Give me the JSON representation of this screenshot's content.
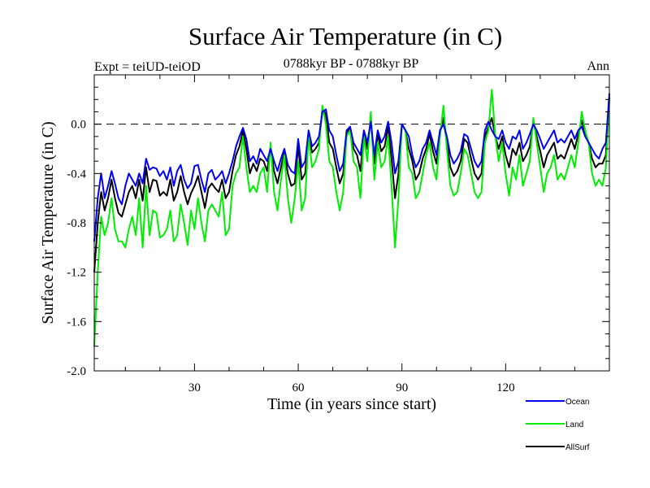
{
  "chart_data": {
    "type": "line",
    "title": "Surface Air Temperature (in C)",
    "subtitle_left": "Expt = teiUD-teiOD",
    "subtitle_center": "0788kyr BP - 0788kyr BP",
    "subtitle_right": "Ann",
    "xlabel": "Time (in years since start)",
    "ylabel": "Surface Air Temperature (in C)",
    "xlim": [
      1,
      150
    ],
    "ylim": [
      -2.0,
      0.4
    ],
    "xticks": [
      30,
      60,
      90,
      120
    ],
    "xtick_labels": [
      "30",
      "60",
      "90",
      "120"
    ],
    "yticks": [
      -2.0,
      -1.6,
      -1.2,
      -0.8,
      -0.4,
      0.0
    ],
    "ytick_labels": [
      "-2.0",
      "-1.6",
      "-1.2",
      "-0.8",
      "-0.4",
      "0.0"
    ],
    "reference_line": 0.0,
    "legend_position": "bottom-right",
    "series": [
      {
        "name": "Ocean",
        "color": "#0000ee",
        "values": [
          -0.95,
          -0.6,
          -0.4,
          -0.6,
          -0.5,
          -0.38,
          -0.48,
          -0.6,
          -0.65,
          -0.5,
          -0.4,
          -0.45,
          -0.5,
          -0.4,
          -0.48,
          -0.28,
          -0.37,
          -0.35,
          -0.36,
          -0.42,
          -0.38,
          -0.45,
          -0.35,
          -0.5,
          -0.38,
          -0.33,
          -0.45,
          -0.52,
          -0.48,
          -0.34,
          -0.33,
          -0.45,
          -0.55,
          -0.4,
          -0.37,
          -0.45,
          -0.42,
          -0.38,
          -0.48,
          -0.4,
          -0.3,
          -0.18,
          -0.1,
          -0.03,
          -0.12,
          -0.3,
          -0.26,
          -0.32,
          -0.2,
          -0.25,
          -0.3,
          -0.2,
          -0.3,
          -0.38,
          -0.28,
          -0.2,
          -0.33,
          -0.38,
          -0.4,
          -0.12,
          -0.35,
          -0.3,
          -0.05,
          -0.18,
          -0.15,
          -0.1,
          0.1,
          0.12,
          -0.05,
          -0.1,
          -0.25,
          -0.38,
          -0.32,
          -0.05,
          -0.02,
          -0.15,
          -0.2,
          -0.25,
          -0.05,
          -0.15,
          0.02,
          -0.25,
          -0.05,
          -0.15,
          -0.1,
          0.02,
          -0.15,
          -0.4,
          -0.3,
          0.0,
          -0.05,
          -0.1,
          -0.25,
          -0.35,
          -0.3,
          -0.2,
          -0.15,
          -0.05,
          -0.15,
          -0.25,
          -0.05,
          0.0,
          -0.1,
          -0.25,
          -0.32,
          -0.28,
          -0.22,
          -0.08,
          -0.1,
          -0.2,
          -0.3,
          -0.35,
          -0.3,
          -0.05,
          0.02,
          -0.05,
          -0.1,
          -0.12,
          -0.05,
          -0.15,
          -0.2,
          -0.1,
          -0.12,
          -0.05,
          -0.2,
          -0.15,
          -0.08,
          0.0,
          -0.05,
          -0.12,
          -0.2,
          -0.15,
          -0.1,
          -0.05,
          -0.15,
          -0.12,
          -0.15,
          -0.1,
          -0.05,
          -0.12,
          -0.05,
          -0.02,
          -0.1,
          -0.15,
          -0.2,
          -0.25,
          -0.28,
          -0.2,
          -0.15,
          0.25
        ]
      },
      {
        "name": "Land",
        "color": "#00ee00",
        "values": [
          -1.8,
          -1.2,
          -0.75,
          -0.9,
          -0.8,
          -0.6,
          -0.85,
          -0.95,
          -0.95,
          -1.0,
          -0.85,
          -0.75,
          -0.9,
          -0.6,
          -1.0,
          -0.5,
          -0.9,
          -0.7,
          -0.72,
          -0.92,
          -0.9,
          -0.85,
          -0.7,
          -0.95,
          -0.9,
          -0.65,
          -0.8,
          -0.98,
          -0.7,
          -0.85,
          -0.6,
          -0.8,
          -0.95,
          -0.7,
          -0.65,
          -0.7,
          -0.75,
          -0.55,
          -0.9,
          -0.85,
          -0.5,
          -0.4,
          -0.35,
          -0.1,
          -0.35,
          -0.55,
          -0.5,
          -0.55,
          -0.4,
          -0.35,
          -0.55,
          -0.15,
          -0.55,
          -0.7,
          -0.45,
          -0.25,
          -0.6,
          -0.8,
          -0.6,
          -0.3,
          -0.7,
          -0.6,
          -0.1,
          -0.35,
          -0.3,
          -0.2,
          0.15,
          0.0,
          -0.3,
          -0.35,
          -0.55,
          -0.7,
          -0.55,
          -0.1,
          -0.05,
          -0.3,
          -0.35,
          -0.6,
          -0.1,
          -0.3,
          0.1,
          -0.45,
          -0.15,
          -0.35,
          -0.3,
          -0.1,
          -0.5,
          -1.0,
          -0.6,
          0.0,
          -0.05,
          -0.35,
          -0.4,
          -0.6,
          -0.55,
          -0.4,
          -0.25,
          -0.15,
          -0.35,
          -0.45,
          -0.1,
          0.15,
          -0.2,
          -0.5,
          -0.58,
          -0.55,
          -0.4,
          -0.2,
          -0.25,
          -0.4,
          -0.55,
          -0.6,
          -0.55,
          -0.15,
          -0.05,
          0.28,
          -0.1,
          -0.3,
          -0.15,
          -0.4,
          -0.58,
          -0.35,
          -0.45,
          -0.25,
          -0.5,
          -0.4,
          -0.3,
          0.05,
          -0.15,
          -0.35,
          -0.55,
          -0.4,
          -0.35,
          -0.25,
          -0.45,
          -0.4,
          -0.45,
          -0.35,
          -0.25,
          -0.35,
          -0.15,
          0.1,
          -0.05,
          -0.15,
          -0.4,
          -0.5,
          -0.45,
          -0.5,
          -0.35,
          0.2
        ]
      },
      {
        "name": "AllSurf",
        "color": "#000000",
        "values": [
          -1.2,
          -0.8,
          -0.55,
          -0.7,
          -0.6,
          -0.45,
          -0.6,
          -0.72,
          -0.75,
          -0.65,
          -0.55,
          -0.5,
          -0.6,
          -0.45,
          -0.62,
          -0.35,
          -0.55,
          -0.45,
          -0.46,
          -0.58,
          -0.55,
          -0.58,
          -0.45,
          -0.62,
          -0.55,
          -0.42,
          -0.55,
          -0.65,
          -0.56,
          -0.5,
          -0.42,
          -0.55,
          -0.68,
          -0.52,
          -0.48,
          -0.52,
          -0.55,
          -0.45,
          -0.6,
          -0.55,
          -0.38,
          -0.25,
          -0.18,
          -0.05,
          -0.2,
          -0.4,
          -0.32,
          -0.38,
          -0.28,
          -0.3,
          -0.38,
          -0.18,
          -0.38,
          -0.48,
          -0.35,
          -0.22,
          -0.4,
          -0.5,
          -0.48,
          -0.18,
          -0.45,
          -0.4,
          -0.08,
          -0.23,
          -0.2,
          -0.15,
          0.12,
          0.08,
          -0.15,
          -0.2,
          -0.35,
          -0.48,
          -0.4,
          -0.07,
          -0.03,
          -0.2,
          -0.25,
          -0.38,
          -0.07,
          -0.2,
          0.05,
          -0.32,
          -0.08,
          -0.22,
          -0.18,
          -0.02,
          -0.28,
          -0.6,
          -0.4,
          0.0,
          -0.05,
          -0.2,
          -0.3,
          -0.45,
          -0.4,
          -0.28,
          -0.2,
          -0.08,
          -0.22,
          -0.32,
          -0.07,
          0.05,
          -0.15,
          -0.35,
          -0.42,
          -0.38,
          -0.3,
          -0.12,
          -0.15,
          -0.28,
          -0.4,
          -0.45,
          -0.4,
          -0.1,
          -0.02,
          0.05,
          -0.1,
          -0.2,
          -0.1,
          -0.25,
          -0.35,
          -0.2,
          -0.25,
          -0.15,
          -0.3,
          -0.25,
          -0.18,
          0.02,
          -0.1,
          -0.22,
          -0.35,
          -0.25,
          -0.2,
          -0.15,
          -0.28,
          -0.25,
          -0.28,
          -0.2,
          -0.12,
          -0.2,
          -0.08,
          0.03,
          -0.08,
          -0.15,
          -0.28,
          -0.35,
          -0.32,
          -0.32,
          -0.25,
          0.22
        ]
      }
    ]
  }
}
